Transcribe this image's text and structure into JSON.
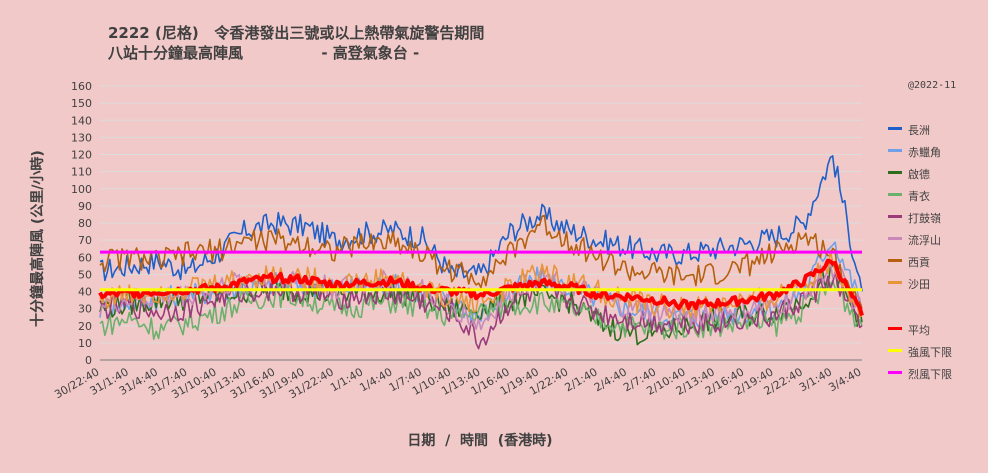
{
  "title_line1": "2222 (尼格)   令香港發出三號或以上熱帶氣旋警告期間",
  "title_line2": "八站十分鐘最高陣風               - 高登氣象台 -",
  "note": "@2022-11",
  "chart_data": {
    "type": "line",
    "ylabel": "十分鐘最高陣風  (公里/小時)",
    "xlabel": "日期  /  時間  (香港時)",
    "ylim": [
      0,
      160
    ],
    "yticks": [
      0,
      10,
      20,
      30,
      40,
      50,
      60,
      70,
      80,
      90,
      100,
      110,
      120,
      130,
      140,
      150,
      160
    ],
    "grid": true,
    "legend_position": "right",
    "categories": [
      "30/22:40",
      "31/1:40",
      "31/4:40",
      "31/7:40",
      "31/10:40",
      "31/13:40",
      "31/16:40",
      "31/19:40",
      "31/22:40",
      "1/1:40",
      "1/4:40",
      "1/7:40",
      "1/10:40",
      "1/13:40",
      "1/16:40",
      "1/19:40",
      "1/22:40",
      "2/1:40",
      "2/4:40",
      "2/7:40",
      "2/10:40",
      "2/13:40",
      "2/16:40",
      "2/19:40",
      "2/22:40",
      "3/1:40",
      "3/4:40"
    ],
    "series": [
      {
        "name": "長洲",
        "color": "#1f5fc8",
        "values": [
          52,
          55,
          58,
          52,
          62,
          76,
          80,
          78,
          70,
          74,
          76,
          71,
          50,
          50,
          75,
          85,
          76,
          70,
          66,
          62,
          62,
          65,
          68,
          72,
          80,
          120,
          40
        ]
      },
      {
        "name": "赤鱲角",
        "color": "#6fa0e8",
        "values": [
          30,
          34,
          36,
          38,
          40,
          43,
          45,
          44,
          42,
          43,
          44,
          40,
          35,
          25,
          40,
          48,
          42,
          36,
          30,
          26,
          25,
          26,
          28,
          30,
          40,
          72,
          32
        ]
      },
      {
        "name": "啟德",
        "color": "#2d6e1e",
        "values": [
          30,
          33,
          35,
          36,
          38,
          40,
          41,
          40,
          38,
          39,
          40,
          36,
          30,
          30,
          35,
          38,
          34,
          22,
          16,
          15,
          20,
          24,
          26,
          28,
          35,
          50,
          22
        ]
      },
      {
        "name": "青衣",
        "color": "#6db06d",
        "values": [
          20,
          24,
          18,
          22,
          28,
          35,
          38,
          36,
          30,
          32,
          34,
          30,
          25,
          28,
          32,
          34,
          30,
          24,
          20,
          18,
          20,
          20,
          22,
          20,
          30,
          45,
          20
        ]
      },
      {
        "name": "打鼓嶺",
        "color": "#9b3c7a",
        "values": [
          30,
          32,
          28,
          30,
          36,
          40,
          42,
          40,
          36,
          38,
          38,
          34,
          28,
          10,
          34,
          40,
          35,
          28,
          24,
          22,
          22,
          22,
          24,
          25,
          35,
          48,
          20
        ]
      },
      {
        "name": "流浮山",
        "color": "#c988b8",
        "values": [
          32,
          35,
          36,
          38,
          42,
          46,
          48,
          46,
          42,
          44,
          46,
          40,
          32,
          20,
          40,
          50,
          44,
          36,
          30,
          28,
          26,
          28,
          30,
          30,
          40,
          55,
          28
        ]
      },
      {
        "name": "西貢",
        "color": "#b5600f",
        "values": [
          58,
          60,
          58,
          62,
          64,
          70,
          70,
          68,
          64,
          68,
          70,
          62,
          52,
          48,
          62,
          80,
          70,
          60,
          52,
          50,
          48,
          50,
          55,
          62,
          72,
          62,
          30
        ]
      },
      {
        "name": "沙田",
        "color": "#e8953a",
        "values": [
          36,
          38,
          40,
          42,
          44,
          48,
          50,
          48,
          44,
          46,
          48,
          42,
          36,
          34,
          42,
          52,
          46,
          40,
          34,
          32,
          30,
          32,
          34,
          36,
          46,
          58,
          26
        ]
      },
      {
        "name": "平均",
        "color": "#ff0000",
        "values": [
          38,
          39,
          40,
          41,
          42,
          46,
          48,
          47,
          44,
          45,
          46,
          42,
          40,
          38,
          42,
          45,
          43,
          38,
          37,
          35,
          32,
          33,
          35,
          38,
          46,
          58,
          26
        ]
      }
    ],
    "reference_lines": [
      {
        "name": "強風下限",
        "color": "#ffff00",
        "value": 41
      },
      {
        "name": "烈風下限",
        "color": "#ff00ff",
        "value": 63
      }
    ]
  }
}
